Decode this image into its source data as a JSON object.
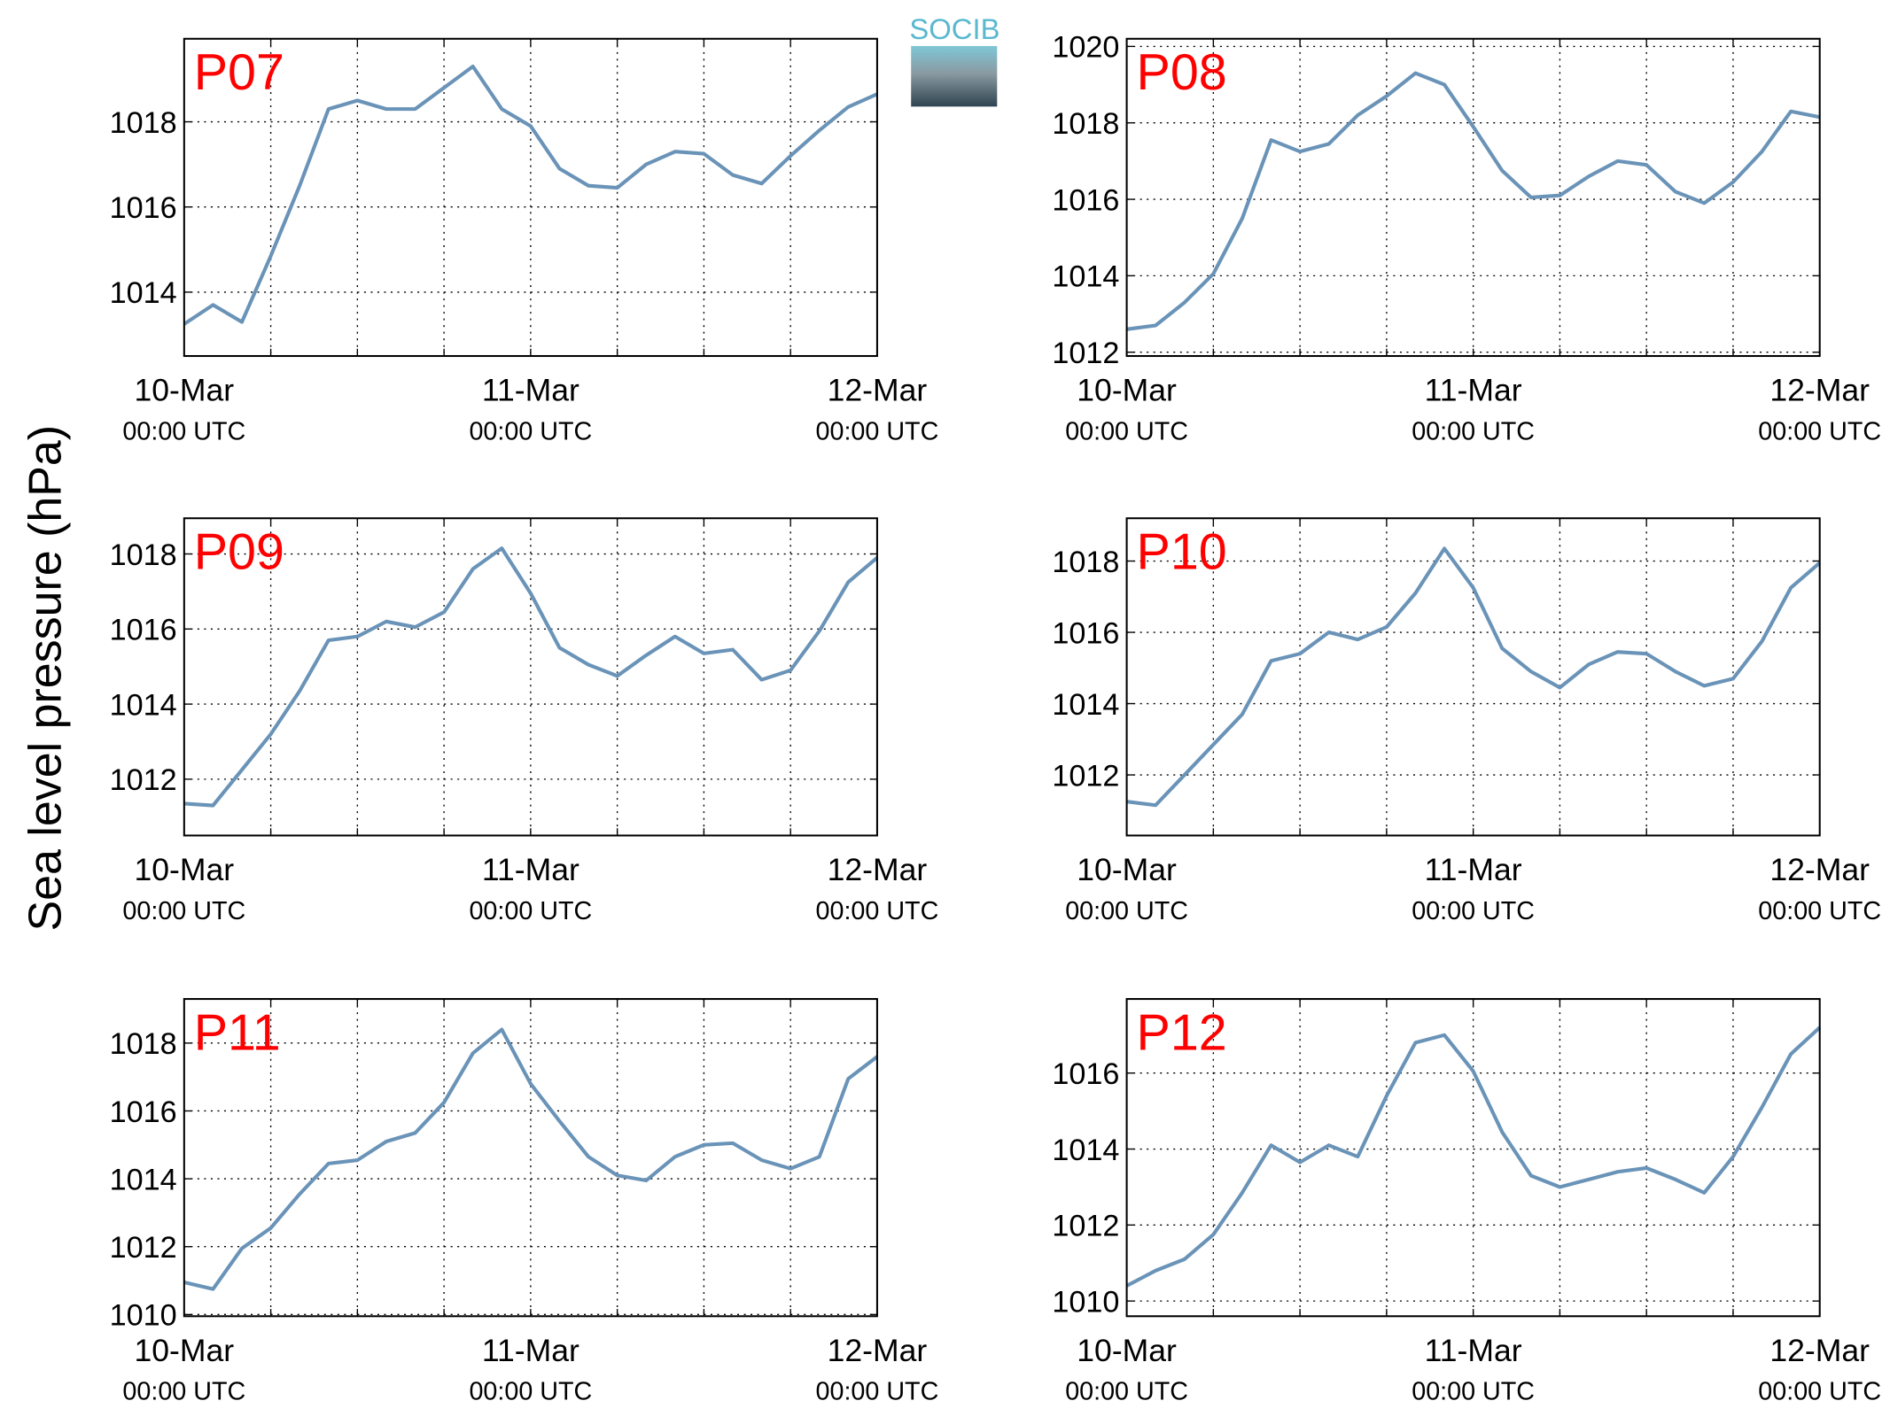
{
  "ylabel": "Sea level pressure (hPa)",
  "logo": "SOCIB",
  "chart_data": [
    {
      "type": "line",
      "title": "P07",
      "x": [
        0,
        2,
        4,
        6,
        8,
        10,
        12,
        14,
        16,
        18,
        20,
        22,
        24,
        26,
        28,
        30,
        32,
        34,
        36,
        38,
        40,
        42,
        44,
        46,
        48
      ],
      "series": [
        {
          "color": "#6a93b8",
          "values": [
            1013.25,
            1013.7,
            1013.3,
            1014.85,
            1016.5,
            1018.3,
            1018.5,
            1018.3,
            1018.3,
            1018.8,
            1019.3,
            1018.3,
            1017.9,
            1016.9,
            1016.5,
            1016.45,
            1017.0,
            1017.3,
            1017.25,
            1016.75,
            1016.55,
            1017.2,
            1017.8,
            1018.35,
            1018.65
          ]
        }
      ],
      "xlim": [
        0,
        48
      ],
      "xticks": [
        {
          "value": 0,
          "label": "10-Mar",
          "sublabel": "00:00 UTC"
        },
        {
          "value": 6,
          "label": null
        },
        {
          "value": 12,
          "label": null
        },
        {
          "value": 18,
          "label": null
        },
        {
          "value": 24,
          "label": "11-Mar",
          "sublabel": "00:00 UTC"
        },
        {
          "value": 30,
          "label": null
        },
        {
          "value": 36,
          "label": null
        },
        {
          "value": 42,
          "label": null
        },
        {
          "value": 48,
          "label": "12-Mar",
          "sublabel": "00:00 UTC"
        }
      ],
      "ylim": [
        1012.5,
        1019.95
      ],
      "yticks": [
        1014,
        1016,
        1018
      ],
      "grid": true
    },
    {
      "type": "line",
      "title": "P08",
      "x": [
        0,
        2,
        4,
        6,
        8,
        10,
        12,
        14,
        16,
        18,
        20,
        22,
        24,
        26,
        28,
        30,
        32,
        34,
        36,
        38,
        40,
        42,
        44,
        46,
        48
      ],
      "series": [
        {
          "color": "#6a93b8",
          "values": [
            1012.6,
            1012.7,
            1013.3,
            1014.05,
            1015.5,
            1017.55,
            1017.25,
            1017.45,
            1018.2,
            1018.7,
            1019.3,
            1019.0,
            1017.9,
            1016.75,
            1016.05,
            1016.1,
            1016.6,
            1017.0,
            1016.9,
            1016.2,
            1015.9,
            1016.45,
            1017.25,
            1018.3,
            1018.15
          ]
        }
      ],
      "xlim": [
        0,
        48
      ],
      "xticks": [
        {
          "value": 0,
          "label": "10-Mar",
          "sublabel": "00:00 UTC"
        },
        {
          "value": 6,
          "label": null
        },
        {
          "value": 12,
          "label": null
        },
        {
          "value": 18,
          "label": null
        },
        {
          "value": 24,
          "label": "11-Mar",
          "sublabel": "00:00 UTC"
        },
        {
          "value": 30,
          "label": null
        },
        {
          "value": 36,
          "label": null
        },
        {
          "value": 42,
          "label": null
        },
        {
          "value": 48,
          "label": "12-Mar",
          "sublabel": "00:00 UTC"
        }
      ],
      "ylim": [
        1011.9,
        1020.2
      ],
      "yticks": [
        1012,
        1014,
        1016,
        1018,
        1020
      ],
      "grid": true
    },
    {
      "type": "line",
      "title": "P09",
      "x": [
        0,
        2,
        4,
        6,
        8,
        10,
        12,
        14,
        16,
        18,
        20,
        22,
        24,
        26,
        28,
        30,
        32,
        34,
        36,
        38,
        40,
        42,
        44,
        46,
        48
      ],
      "series": [
        {
          "color": "#6a93b8",
          "values": [
            1011.35,
            1011.3,
            1012.25,
            1013.2,
            1014.35,
            1015.7,
            1015.8,
            1016.2,
            1016.05,
            1016.45,
            1017.6,
            1018.15,
            1016.95,
            1015.5,
            1015.05,
            1014.75,
            1015.3,
            1015.8,
            1015.35,
            1015.45,
            1014.65,
            1014.9,
            1015.95,
            1017.25,
            1017.9
          ]
        }
      ],
      "xlim": [
        0,
        48
      ],
      "xticks": [
        {
          "value": 0,
          "label": "10-Mar",
          "sublabel": "00:00 UTC"
        },
        {
          "value": 6,
          "label": null
        },
        {
          "value": 12,
          "label": null
        },
        {
          "value": 18,
          "label": null
        },
        {
          "value": 24,
          "label": "11-Mar",
          "sublabel": "00:00 UTC"
        },
        {
          "value": 30,
          "label": null
        },
        {
          "value": 36,
          "label": null
        },
        {
          "value": 42,
          "label": null
        },
        {
          "value": 48,
          "label": "12-Mar",
          "sublabel": "00:00 UTC"
        }
      ],
      "ylim": [
        1010.5,
        1018.95
      ],
      "yticks": [
        1012,
        1014,
        1016,
        1018
      ],
      "grid": true
    },
    {
      "type": "line",
      "title": "P10",
      "x": [
        0,
        2,
        4,
        6,
        8,
        10,
        12,
        14,
        16,
        18,
        20,
        22,
        24,
        26,
        28,
        30,
        32,
        34,
        36,
        38,
        40,
        42,
        44,
        46,
        48
      ],
      "series": [
        {
          "color": "#6a93b8",
          "values": [
            1011.25,
            1011.15,
            1012.0,
            1012.85,
            1013.7,
            1015.2,
            1015.4,
            1016.0,
            1015.8,
            1016.15,
            1017.1,
            1018.35,
            1017.25,
            1015.55,
            1014.9,
            1014.45,
            1015.1,
            1015.45,
            1015.4,
            1014.9,
            1014.5,
            1014.7,
            1015.75,
            1017.25,
            1017.95
          ]
        }
      ],
      "xlim": [
        0,
        48
      ],
      "xticks": [
        {
          "value": 0,
          "label": "10-Mar",
          "sublabel": "00:00 UTC"
        },
        {
          "value": 6,
          "label": null
        },
        {
          "value": 12,
          "label": null
        },
        {
          "value": 18,
          "label": null
        },
        {
          "value": 24,
          "label": "11-Mar",
          "sublabel": "00:00 UTC"
        },
        {
          "value": 30,
          "label": null
        },
        {
          "value": 36,
          "label": null
        },
        {
          "value": 42,
          "label": null
        },
        {
          "value": 48,
          "label": "12-Mar",
          "sublabel": "00:00 UTC"
        }
      ],
      "ylim": [
        1010.3,
        1019.2
      ],
      "yticks": [
        1012,
        1014,
        1016,
        1018
      ],
      "grid": true
    },
    {
      "type": "line",
      "title": "P11",
      "x": [
        0,
        2,
        4,
        6,
        8,
        10,
        12,
        14,
        16,
        18,
        20,
        22,
        24,
        26,
        28,
        30,
        32,
        34,
        36,
        38,
        40,
        42,
        44,
        46,
        48
      ],
      "series": [
        {
          "color": "#6a93b8",
          "values": [
            1010.95,
            1010.75,
            1011.95,
            1012.55,
            1013.55,
            1014.45,
            1014.55,
            1015.1,
            1015.35,
            1016.25,
            1017.7,
            1018.4,
            1016.8,
            1015.7,
            1014.65,
            1014.1,
            1013.95,
            1014.65,
            1015.0,
            1015.05,
            1014.55,
            1014.3,
            1014.65,
            1016.95,
            1017.6
          ]
        }
      ],
      "xlim": [
        0,
        48
      ],
      "xticks": [
        {
          "value": 0,
          "label": "10-Mar",
          "sublabel": "00:00 UTC"
        },
        {
          "value": 6,
          "label": null
        },
        {
          "value": 12,
          "label": null
        },
        {
          "value": 18,
          "label": null
        },
        {
          "value": 24,
          "label": "11-Mar",
          "sublabel": "00:00 UTC"
        },
        {
          "value": 30,
          "label": null
        },
        {
          "value": 36,
          "label": null
        },
        {
          "value": 42,
          "label": null
        },
        {
          "value": 48,
          "label": "12-Mar",
          "sublabel": "00:00 UTC"
        }
      ],
      "ylim": [
        1009.95,
        1019.3
      ],
      "yticks": [
        1010,
        1012,
        1014,
        1016,
        1018
      ],
      "grid": true
    },
    {
      "type": "line",
      "title": "P12",
      "x": [
        0,
        2,
        4,
        6,
        8,
        10,
        12,
        14,
        16,
        18,
        20,
        22,
        24,
        26,
        28,
        30,
        32,
        34,
        36,
        38,
        40,
        42,
        44,
        46,
        48
      ],
      "series": [
        {
          "color": "#6a93b8",
          "values": [
            1010.4,
            1010.8,
            1011.1,
            1011.75,
            1012.85,
            1014.1,
            1013.65,
            1014.1,
            1013.8,
            1015.4,
            1016.8,
            1017.0,
            1016.05,
            1014.45,
            1013.3,
            1013.0,
            1013.2,
            1013.4,
            1013.5,
            1013.2,
            1012.85,
            1013.8,
            1015.1,
            1016.5,
            1017.2
          ]
        }
      ],
      "xlim": [
        0,
        48
      ],
      "xticks": [
        {
          "value": 0,
          "label": "10-Mar",
          "sublabel": "00:00 UTC"
        },
        {
          "value": 6,
          "label": null
        },
        {
          "value": 12,
          "label": null
        },
        {
          "value": 18,
          "label": null
        },
        {
          "value": 24,
          "label": "11-Mar",
          "sublabel": "00:00 UTC"
        },
        {
          "value": 30,
          "label": null
        },
        {
          "value": 36,
          "label": null
        },
        {
          "value": 42,
          "label": null
        },
        {
          "value": 48,
          "label": "12-Mar",
          "sublabel": "00:00 UTC"
        }
      ],
      "ylim": [
        1009.6,
        1017.95
      ],
      "yticks": [
        1010,
        1012,
        1014,
        1016
      ],
      "grid": true
    }
  ]
}
